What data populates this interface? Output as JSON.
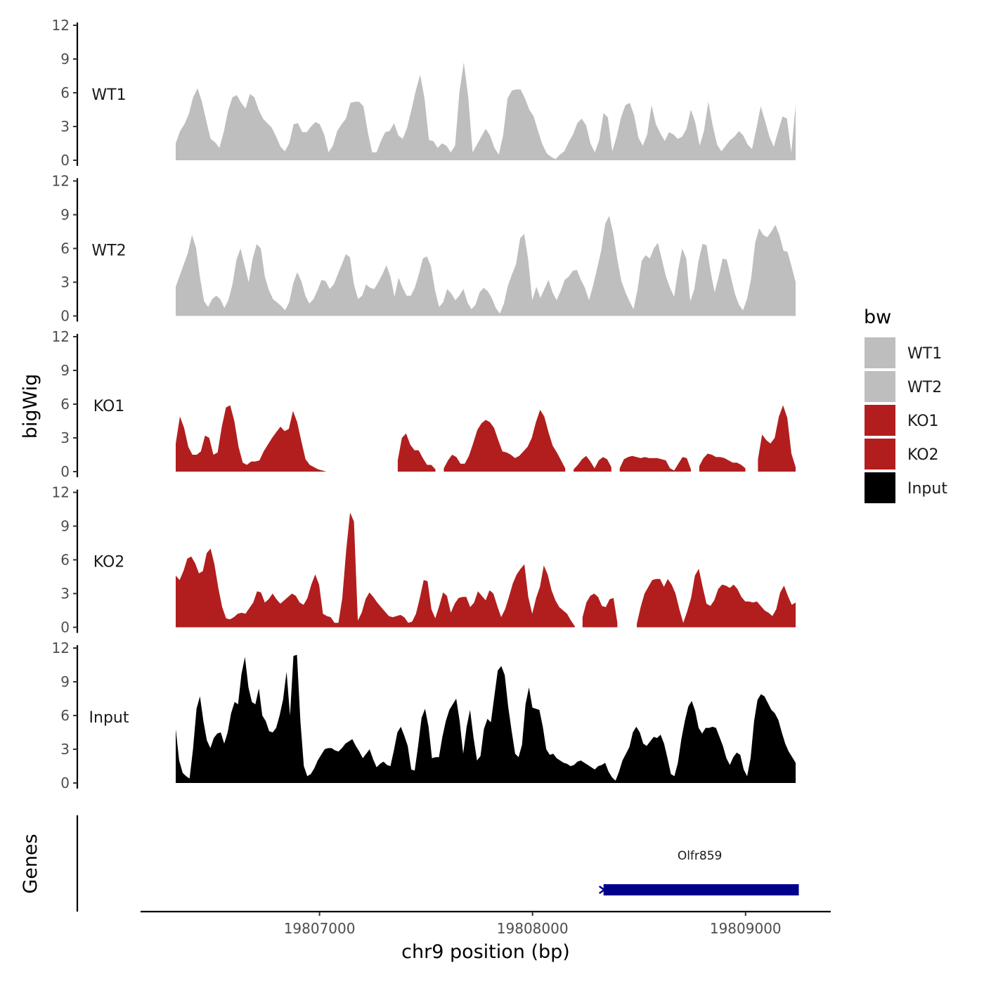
{
  "chart_data": {
    "type": "area",
    "title": "",
    "xlabel": "chr9 position (bp)",
    "ylabel": "bigWig",
    "genes_label": "Genes",
    "xlim": [
      19806160,
      19809400
    ],
    "region": [
      19806320,
      19809240
    ],
    "ylim": [
      0,
      12
    ],
    "yticks": [
      0,
      3,
      6,
      9,
      12
    ],
    "xticks": [
      19807000,
      19808000,
      19809000
    ],
    "xtick_labels": [
      "19807000",
      "19808000",
      "19809000"
    ],
    "legend": {
      "title": "bw",
      "position": "right",
      "entries": [
        {
          "label": "WT1",
          "color": "#bebebe"
        },
        {
          "label": "WT2",
          "color": "#bebebe"
        },
        {
          "label": "KO1",
          "color": "#b21e1e"
        },
        {
          "label": "KO2",
          "color": "#b21e1e"
        },
        {
          "label": "Input",
          "color": "#000000"
        }
      ]
    },
    "series": [
      {
        "name": "WT1",
        "color": "#bebebe",
        "values": [
          1.5,
          2.6,
          3.2,
          4.1,
          5.6,
          6.4,
          5.2,
          3.5,
          1.9,
          1.6,
          1.1,
          2.5,
          4.4,
          5.6,
          5.8,
          5.1,
          4.6,
          5.9,
          5.6,
          4.5,
          3.7,
          3.3,
          2.9,
          2.1,
          1.2,
          0.8,
          1.5,
          3.2,
          3.3,
          2.5,
          2.5,
          3.0,
          3.4,
          3.2,
          2.3,
          0.7,
          1.3,
          2.6,
          3.2,
          3.7,
          5.1,
          5.2,
          5.2,
          4.8,
          2.5,
          0.7,
          0.7,
          1.7,
          2.5,
          2.6,
          3.3,
          2.2,
          1.9,
          2.9,
          4.5,
          6.2,
          7.6,
          5.5,
          1.8,
          1.7,
          1.1,
          1.5,
          1.3,
          0.7,
          1.3,
          6.1,
          8.7,
          5.6,
          0.7,
          1.4,
          2.1,
          2.8,
          2.2,
          1.1,
          0.5,
          2.2,
          5.5,
          6.2,
          6.3,
          6.3,
          5.5,
          4.5,
          3.9,
          2.6,
          1.4,
          0.6,
          0.3,
          0.1,
          0.5,
          0.8,
          1.6,
          2.3,
          3.3,
          3.7,
          3.1,
          1.5,
          0.7,
          1.8,
          4.2,
          3.8,
          0.8,
          2.1,
          3.8,
          4.9,
          5.1,
          4.0,
          2.0,
          1.3,
          2.3,
          4.9,
          3.2,
          2.4,
          1.7,
          2.5,
          2.3,
          1.9,
          2.1,
          2.8,
          4.5,
          3.4,
          1.3,
          2.6,
          5.2,
          3.1,
          1.4,
          0.8,
          1.3,
          1.8,
          2.1,
          2.6,
          2.2,
          1.4,
          1.0,
          2.8,
          4.8,
          3.5,
          2.1,
          1.2,
          2.6,
          3.9,
          3.7,
          0.7,
          4.9
        ]
      },
      {
        "name": "WT2",
        "color": "#bebebe",
        "values": [
          2.6,
          3.6,
          4.6,
          5.6,
          7.2,
          6.1,
          3.4,
          1.3,
          0.8,
          1.5,
          1.8,
          1.5,
          0.7,
          1.4,
          2.8,
          5.0,
          6.0,
          4.5,
          3.0,
          5.1,
          6.4,
          6.0,
          3.5,
          2.3,
          1.5,
          1.2,
          0.9,
          0.5,
          1.2,
          2.9,
          3.9,
          3.1,
          1.8,
          1.1,
          1.5,
          2.3,
          3.2,
          3.1,
          2.4,
          2.8,
          3.7,
          4.6,
          5.5,
          5.2,
          2.8,
          1.5,
          1.8,
          2.8,
          2.5,
          2.4,
          3.0,
          3.7,
          4.5,
          3.5,
          1.7,
          3.4,
          2.5,
          1.8,
          1.8,
          2.5,
          3.7,
          5.1,
          5.3,
          4.4,
          2.3,
          0.8,
          1.2,
          2.4,
          2.0,
          1.4,
          1.8,
          2.4,
          1.2,
          0.6,
          1.0,
          2.1,
          2.5,
          2.2,
          1.6,
          0.7,
          0.2,
          1.1,
          2.7,
          3.7,
          4.6,
          6.9,
          7.3,
          5.0,
          1.4,
          2.6,
          1.6,
          2.4,
          3.2,
          2.1,
          1.4,
          2.2,
          3.2,
          3.5,
          4.0,
          4.1,
          3.2,
          2.5,
          1.4,
          2.7,
          4.2,
          5.8,
          8.2,
          8.9,
          7.3,
          5.0,
          3.1,
          2.1,
          1.3,
          0.6,
          2.4,
          4.9,
          5.4,
          5.1,
          6.0,
          6.5,
          5.0,
          3.5,
          2.5,
          1.7,
          4.1,
          6.0,
          5.1,
          1.3,
          2.4,
          4.8,
          6.4,
          6.3,
          4.0,
          2.1,
          3.5,
          5.1,
          5.0,
          3.5,
          2.0,
          1.0,
          0.5,
          1.5,
          3.3,
          6.5,
          7.8,
          7.2,
          7.0,
          7.5,
          8.1,
          7.2,
          5.8,
          5.7,
          4.4,
          3.0
        ]
      },
      {
        "name": "KO1",
        "color": "#b21e1e",
        "values": [
          2.5,
          4.9,
          3.9,
          2.2,
          1.5,
          1.5,
          1.8,
          3.2,
          3.0,
          1.5,
          1.7,
          4.0,
          5.7,
          5.9,
          4.5,
          2.2,
          0.8,
          0.6,
          0.9,
          0.9,
          1.0,
          1.8,
          2.4,
          3.0,
          3.5,
          4.0,
          3.6,
          3.8,
          5.4,
          4.4,
          2.7,
          1.1,
          0.6,
          0.4,
          0.2,
          0.1,
          0.0,
          null,
          null,
          null,
          null,
          null,
          null,
          null,
          null,
          null,
          null,
          null,
          null,
          null,
          null,
          null,
          null,
          1.0,
          3.0,
          3.4,
          2.4,
          1.9,
          1.9,
          1.2,
          0.6,
          0.6,
          0.2,
          null,
          0.3,
          1.0,
          1.5,
          1.3,
          0.7,
          0.7,
          1.4,
          2.5,
          3.7,
          4.3,
          4.6,
          4.4,
          3.9,
          2.8,
          1.8,
          1.7,
          1.5,
          1.2,
          1.4,
          1.8,
          2.2,
          3.0,
          4.4,
          5.5,
          4.9,
          3.5,
          2.3,
          1.7,
          1.0,
          0.3,
          null,
          0.2,
          0.6,
          1.1,
          1.4,
          0.9,
          0.3,
          1.0,
          1.3,
          1.1,
          0.4,
          null,
          0.3,
          1.1,
          1.3,
          1.4,
          1.3,
          1.2,
          1.3,
          1.2,
          1.2,
          1.2,
          1.1,
          1.0,
          0.3,
          0.1,
          0.7,
          1.3,
          1.2,
          0.2,
          null,
          0.5,
          1.2,
          1.6,
          1.5,
          1.3,
          1.3,
          1.2,
          1.0,
          0.8,
          0.8,
          0.6,
          0.3,
          null,
          null,
          1.1,
          3.3,
          2.8,
          2.5,
          3.0,
          4.9,
          5.9,
          4.8,
          1.6,
          0.4
        ]
      },
      {
        "name": "KO2",
        "color": "#b21e1e",
        "values": [
          4.6,
          4.2,
          5.0,
          6.1,
          6.3,
          5.7,
          4.8,
          5.0,
          6.6,
          7.0,
          5.6,
          3.5,
          1.8,
          0.8,
          0.7,
          0.9,
          1.2,
          1.3,
          1.2,
          1.7,
          2.2,
          3.2,
          3.1,
          2.2,
          2.5,
          3.0,
          2.5,
          2.1,
          2.4,
          2.7,
          3.0,
          2.8,
          2.2,
          2.0,
          2.6,
          3.8,
          4.7,
          3.8,
          1.2,
          1.0,
          0.9,
          0.4,
          0.4,
          2.6,
          6.9,
          10.2,
          9.4,
          0.6,
          1.3,
          2.5,
          3.1,
          2.7,
          2.2,
          1.8,
          1.4,
          1.0,
          0.9,
          1.0,
          1.1,
          0.9,
          0.4,
          0.5,
          1.2,
          2.6,
          4.2,
          4.1,
          1.6,
          0.8,
          1.9,
          3.1,
          2.8,
          1.3,
          2.1,
          2.6,
          2.7,
          2.7,
          1.8,
          2.2,
          3.2,
          2.8,
          2.4,
          3.3,
          3.0,
          1.9,
          0.9,
          1.6,
          2.7,
          3.9,
          4.7,
          5.2,
          5.6,
          2.7,
          1.2,
          2.6,
          3.6,
          5.5,
          4.7,
          3.3,
          2.4,
          1.8,
          1.5,
          1.2,
          0.6,
          0.1,
          null,
          0.9,
          2.2,
          2.8,
          3.0,
          2.7,
          1.9,
          1.8,
          2.5,
          2.6,
          0.4,
          null,
          null,
          null,
          null,
          0.3,
          1.8,
          3.0,
          3.6,
          4.2,
          4.3,
          4.3,
          3.6,
          4.3,
          3.8,
          3.0,
          1.6,
          0.4,
          1.4,
          2.6,
          4.6,
          5.2,
          3.6,
          2.1,
          1.9,
          2.4,
          3.4,
          3.8,
          3.7,
          3.5,
          3.8,
          3.4,
          2.7,
          2.3,
          2.3,
          2.2,
          2.3,
          1.9,
          1.5,
          1.3,
          1.0,
          1.6,
          3.1,
          3.7,
          2.8,
          2.0,
          2.2
        ]
      },
      {
        "name": "Input",
        "color": "#000000",
        "values": [
          4.8,
          2.0,
          0.9,
          0.6,
          0.4,
          3.0,
          6.6,
          7.7,
          5.5,
          3.8,
          3.1,
          4.0,
          4.4,
          4.5,
          3.5,
          4.5,
          6.2,
          7.2,
          7.0,
          9.7,
          11.2,
          8.5,
          7.2,
          7.0,
          8.4,
          6.0,
          5.5,
          4.6,
          4.5,
          4.9,
          6.0,
          7.4,
          9.9,
          6.0,
          11.3,
          11.4,
          5.5,
          1.5,
          0.6,
          0.8,
          1.3,
          2.0,
          2.5,
          3.0,
          3.1,
          3.1,
          2.9,
          2.8,
          3.1,
          3.5,
          3.7,
          3.9,
          3.3,
          2.8,
          2.2,
          2.6,
          3.0,
          2.1,
          1.4,
          1.7,
          1.9,
          1.6,
          1.5,
          2.9,
          4.5,
          5.0,
          4.2,
          3.3,
          1.2,
          1.1,
          3.3,
          5.8,
          6.6,
          5.0,
          2.2,
          2.3,
          2.3,
          4.1,
          5.5,
          6.5,
          7.0,
          7.5,
          5.5,
          2.6,
          5.0,
          6.5,
          4.0,
          2.0,
          2.4,
          4.8,
          5.7,
          5.4,
          7.7,
          10.0,
          10.4,
          9.6,
          6.8,
          4.6,
          2.6,
          2.3,
          3.4,
          7.0,
          8.5,
          6.7,
          6.6,
          6.5,
          5.0,
          3.0,
          2.5,
          2.6,
          2.2,
          2.0,
          1.8,
          1.7,
          1.5,
          1.6,
          1.9,
          2.0,
          1.8,
          1.6,
          1.4,
          1.2,
          1.5,
          1.6,
          1.8,
          1.0,
          0.5,
          0.2,
          1.0,
          2.0,
          2.6,
          3.2,
          4.5,
          5.0,
          4.5,
          3.5,
          3.3,
          3.7,
          4.1,
          4.0,
          4.3,
          3.5,
          2.2,
          0.8,
          0.6,
          1.8,
          3.9,
          5.5,
          6.8,
          7.3,
          6.4,
          4.9,
          4.4,
          4.9,
          4.9,
          5.0,
          4.9,
          4.1,
          3.3,
          2.2,
          1.6,
          2.3,
          2.7,
          2.5,
          1.2,
          0.6,
          2.2,
          5.5,
          7.4,
          7.9,
          7.7,
          7.1,
          6.5,
          6.2,
          5.6,
          4.5,
          3.5,
          2.8,
          2.3,
          1.8
        ]
      }
    ],
    "genes": [
      {
        "name": "Olfr859",
        "start": 19808320,
        "end": 19809250,
        "strand": "-",
        "color": "#00008b"
      }
    ]
  }
}
